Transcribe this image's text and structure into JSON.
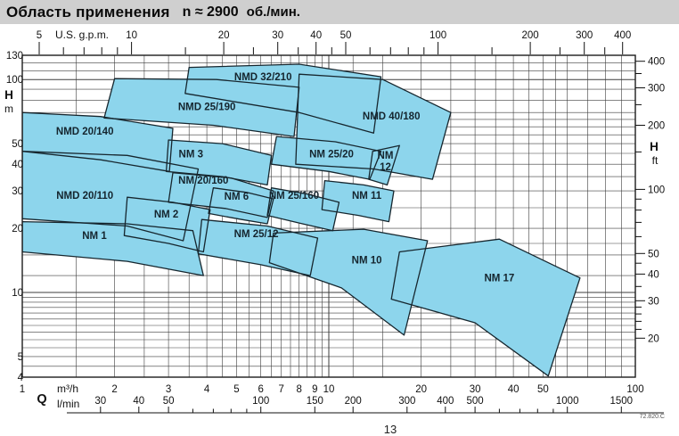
{
  "title": {
    "text": "Область применения",
    "speed": "n ≈ 2900",
    "unit": "об./мин."
  },
  "footnote": "72.820.C",
  "page_number": "13",
  "colors": {
    "title_bar_bg": "#cfcfcf",
    "region_fill": "#8dd5ec",
    "region_stroke": "#16262e",
    "grid": "#3d3d3d",
    "frame": "#1c1c1c",
    "axis_text": "#111111",
    "label_text": "#15252e"
  },
  "chart_data": {
    "type": "area",
    "title": "Область применения n ≈ 2900 об./мин.",
    "scale": "log-log",
    "x_range_m3h": [
      1,
      100
    ],
    "y_range_m": [
      4,
      130
    ],
    "axes": {
      "top": {
        "unit": "U.S. g.p.m.",
        "labeled_ticks": [
          5,
          10,
          20,
          30,
          40,
          50,
          100,
          200,
          300,
          400
        ],
        "minor_ticks": [
          6,
          7,
          8,
          9,
          15,
          25,
          35,
          45,
          60,
          70,
          80,
          90,
          150,
          250,
          350
        ]
      },
      "left": {
        "unit_line1": "H",
        "unit_line2": "m",
        "labeled_ticks": [
          4,
          5,
          10,
          20,
          30,
          40,
          50,
          100,
          130
        ]
      },
      "right": {
        "unit_line1": "H",
        "unit_line2": "ft",
        "labeled_ticks": [
          20,
          30,
          40,
          50,
          100,
          200,
          300,
          400
        ],
        "minor_ticks": [
          22,
          24,
          26,
          28,
          35,
          45,
          60,
          70,
          80,
          90,
          150,
          250,
          350
        ]
      },
      "bottom_m3h": {
        "unit": "m³/h",
        "q_symbol": "Q",
        "labeled_ticks": [
          1,
          2,
          3,
          4,
          5,
          6,
          7,
          8,
          9,
          10,
          20,
          30,
          40,
          50,
          100
        ]
      },
      "bottom_lmin": {
        "unit": "l/min",
        "labeled_ticks": [
          30,
          40,
          50,
          100,
          150,
          200,
          300,
          400,
          500,
          1000,
          1500
        ],
        "minor_ticks": [
          60,
          70,
          80,
          90,
          600,
          700,
          800,
          900
        ]
      }
    },
    "grid": {
      "h_lines_m": [
        4,
        4.5,
        5,
        5.5,
        6,
        6.5,
        7,
        7.5,
        8,
        8.5,
        9,
        9.5,
        10,
        12,
        15,
        17,
        20,
        25,
        30,
        35,
        40,
        45,
        50,
        55,
        60,
        65,
        70,
        80,
        90,
        100,
        110,
        120,
        130
      ],
      "q_lines_m3h": [
        1,
        1.5,
        2,
        2.5,
        3,
        3.5,
        4,
        4.5,
        5,
        5.5,
        6,
        6.5,
        7,
        7.5,
        8,
        8.5,
        9,
        9.5,
        10,
        12,
        15,
        20,
        25,
        30,
        35,
        40,
        45,
        50,
        55,
        60,
        70,
        80,
        90,
        100
      ]
    },
    "regions": [
      {
        "name": "NMD 20/140",
        "label_at": [
          1.6,
          55
        ],
        "points": [
          [
            1,
            70
          ],
          [
            1.8,
            67
          ],
          [
            3.1,
            59
          ],
          [
            3.02,
            37
          ],
          [
            1.8,
            42
          ],
          [
            1,
            46
          ]
        ]
      },
      {
        "name": "NMD 25/190",
        "label_at": [
          4.0,
          72
        ],
        "points": [
          [
            2,
            101
          ],
          [
            4.3,
            100
          ],
          [
            8,
            92
          ],
          [
            7.7,
            54
          ],
          [
            4.2,
            61
          ],
          [
            1.85,
            66
          ]
        ]
      },
      {
        "name": "NMD 32/210",
        "label_at": [
          6.1,
          99
        ],
        "points": [
          [
            3.5,
            114
          ],
          [
            8,
            118
          ],
          [
            14.8,
            103
          ],
          [
            14,
            56
          ],
          [
            8,
            70
          ],
          [
            3.4,
            86
          ]
        ]
      },
      {
        "name": "NMD 40/180",
        "label_at": [
          16,
          65
        ],
        "points": [
          [
            8,
            106
          ],
          [
            15,
            100
          ],
          [
            25,
            70
          ],
          [
            21.8,
            34
          ],
          [
            14,
            38
          ],
          [
            7.8,
            40
          ]
        ]
      },
      {
        "name": "NMD 20/110",
        "label_at": [
          1.6,
          27.5
        ],
        "points": [
          [
            1,
            46
          ],
          [
            2.2,
            44
          ],
          [
            3.75,
            38
          ],
          [
            3.35,
            17.5
          ],
          [
            2.2,
            20.5
          ],
          [
            1,
            22.2
          ]
        ]
      },
      {
        "name": "NM 3",
        "label_at": [
          3.55,
          43
        ],
        "points": [
          [
            3.0,
            52
          ],
          [
            4.5,
            50
          ],
          [
            6.5,
            44
          ],
          [
            6.3,
            32
          ],
          [
            4.5,
            35
          ],
          [
            2.95,
            37
          ]
        ]
      },
      {
        "name": "NM 20/160",
        "label_at": [
          3.9,
          32.5
        ],
        "points": [
          [
            3.1,
            36.5
          ],
          [
            4.8,
            34.5
          ],
          [
            6.6,
            30
          ],
          [
            6.3,
            22.5
          ],
          [
            4.6,
            24.8
          ],
          [
            3.0,
            26.5
          ]
        ]
      },
      {
        "name": "NM 2",
        "label_at": [
          2.95,
          22.5
        ],
        "points": [
          [
            2.2,
            28
          ],
          [
            3.1,
            26.5
          ],
          [
            4.1,
            24.5
          ],
          [
            3.9,
            15.5
          ],
          [
            3.0,
            17
          ],
          [
            2.15,
            18.5
          ]
        ]
      },
      {
        "name": "NM 6",
        "label_at": [
          5.0,
          27.3
        ],
        "points": [
          [
            4.2,
            31
          ],
          [
            5.4,
            29.5
          ],
          [
            6.6,
            27.5
          ],
          [
            6.3,
            21
          ],
          [
            5.2,
            22
          ],
          [
            4.05,
            23.5
          ]
        ]
      },
      {
        "name": "NM 1",
        "label_at": [
          1.72,
          17.8
        ],
        "points": [
          [
            1,
            21.5
          ],
          [
            2.2,
            21
          ],
          [
            3.6,
            19.5
          ],
          [
            3.9,
            12
          ],
          [
            2.2,
            14
          ],
          [
            1,
            15.5
          ]
        ]
      },
      {
        "name": "NM 25/12",
        "label_at": [
          5.8,
          18.2
        ],
        "points": [
          [
            3.85,
            22
          ],
          [
            6.3,
            20.5
          ],
          [
            9.2,
            18
          ],
          [
            8.7,
            12
          ],
          [
            6,
            13.5
          ],
          [
            3.75,
            15.2
          ]
        ]
      },
      {
        "name": "NM 25/160",
        "label_at": [
          7.7,
          27.5
        ],
        "points": [
          [
            6.5,
            31
          ],
          [
            8.5,
            29
          ],
          [
            10.8,
            26.5
          ],
          [
            10.3,
            19.5
          ],
          [
            8.2,
            21
          ],
          [
            6.3,
            23
          ]
        ]
      },
      {
        "name": "NM 25/20",
        "label_at": [
          10.2,
          43
        ],
        "points": [
          [
            6.75,
            54
          ],
          [
            10.5,
            51
          ],
          [
            14.8,
            46
          ],
          [
            13.6,
            34
          ],
          [
            10,
            37
          ],
          [
            6.5,
            40
          ]
        ]
      },
      {
        "name": "NM 12",
        "label_at": [
          15.3,
          42.5
        ],
        "label_lines": [
          "NM",
          "12"
        ],
        "points": [
          [
            13.9,
            46
          ],
          [
            17,
            49
          ],
          [
            15.5,
            32
          ],
          [
            13.5,
            34
          ]
        ]
      },
      {
        "name": "NM 11",
        "label_at": [
          13.3,
          27.5
        ],
        "points": [
          [
            9.7,
            33.5
          ],
          [
            13,
            32
          ],
          [
            16.3,
            30
          ],
          [
            15.7,
            21.5
          ],
          [
            12.5,
            23
          ],
          [
            9.5,
            24.5
          ]
        ]
      },
      {
        "name": "NM 10",
        "label_at": [
          13.3,
          13.7
        ],
        "points": [
          [
            6.6,
            19
          ],
          [
            13,
            19.8
          ],
          [
            21,
            17.5
          ],
          [
            17.6,
            6.3
          ],
          [
            11,
            10.5
          ],
          [
            6.4,
            13.8
          ]
        ]
      },
      {
        "name": "NM 17",
        "label_at": [
          36,
          11.3
        ],
        "points": [
          [
            17,
            15.5
          ],
          [
            36,
            17.8
          ],
          [
            66,
            11.7
          ],
          [
            52,
            4.05
          ],
          [
            30,
            7.2
          ],
          [
            16,
            9.3
          ]
        ]
      }
    ]
  }
}
